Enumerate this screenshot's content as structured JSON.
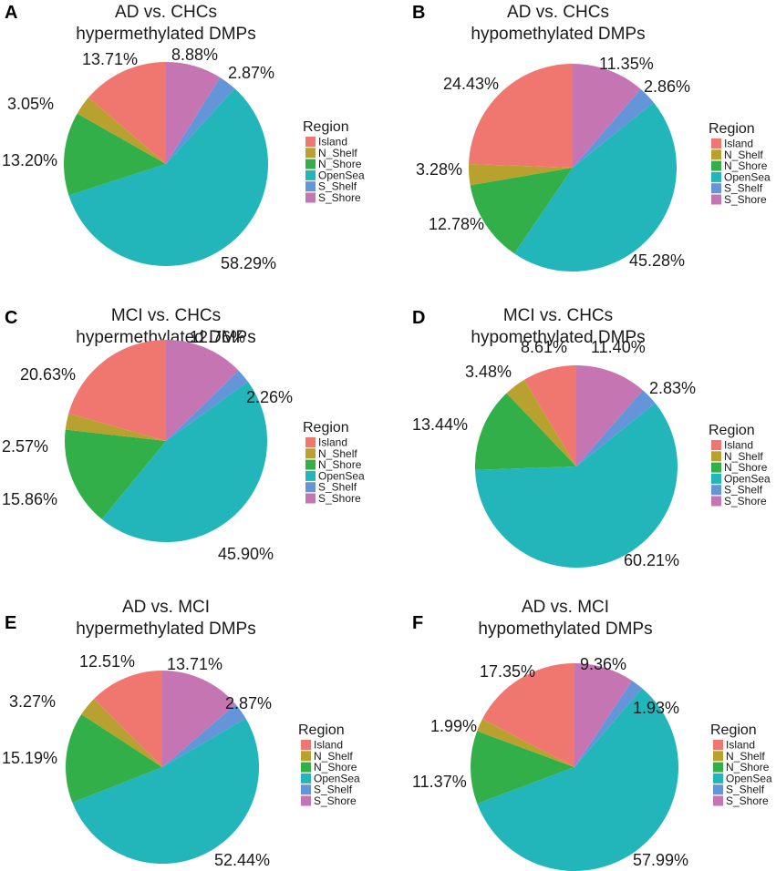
{
  "legend": {
    "title": "Region",
    "items": [
      {
        "name": "Island",
        "color": "#F07770"
      },
      {
        "name": "N_Shelf",
        "color": "#B8A12E"
      },
      {
        "name": "N_Shore",
        "color": "#32AF48"
      },
      {
        "name": "OpenSea",
        "color": "#22B5B9"
      },
      {
        "name": "S_Shelf",
        "color": "#6495D8"
      },
      {
        "name": "S_Shore",
        "color": "#C575B2"
      }
    ]
  },
  "chart_data": [
    {
      "type": "pie",
      "letter": "A",
      "title_lines": [
        "AD vs. CHCs",
        "hypermethylated DMPs"
      ],
      "categories": [
        "S_Shore",
        "S_Shelf",
        "OpenSea",
        "N_Shore",
        "N_Shelf",
        "Island"
      ],
      "values": [
        8.88,
        2.87,
        58.29,
        13.2,
        3.05,
        13.71
      ],
      "labels": [
        "8.88%",
        "2.87%",
        "58.29%",
        "13.20%",
        "3.05%",
        "13.71%"
      ]
    },
    {
      "type": "pie",
      "letter": "B",
      "title_lines": [
        "AD vs. CHCs",
        "hypomethylated DMPs"
      ],
      "categories": [
        "S_Shore",
        "S_Shelf",
        "OpenSea",
        "N_Shore",
        "N_Shelf",
        "Island"
      ],
      "values": [
        11.35,
        2.86,
        45.28,
        12.78,
        3.28,
        24.43
      ],
      "labels": [
        "11.35%",
        "2.86%",
        "45.28%",
        "12.78%",
        "3.28%",
        "24.43%"
      ]
    },
    {
      "type": "pie",
      "letter": "C",
      "title_lines": [
        "MCI vs. CHCs",
        "hypermethylated DMPs"
      ],
      "categories": [
        "S_Shore",
        "S_Shelf",
        "OpenSea",
        "N_Shore",
        "N_Shelf",
        "Island"
      ],
      "values": [
        12.76,
        2.26,
        45.9,
        15.86,
        2.57,
        20.63
      ],
      "labels": [
        "12.76%",
        "2.26%",
        "45.90%",
        "15.86%",
        "2.57%",
        "20.63%"
      ]
    },
    {
      "type": "pie",
      "letter": "D",
      "title_lines": [
        "MCI vs. CHCs",
        "hypomethylated DMPs"
      ],
      "categories": [
        "S_Shore",
        "S_Shelf",
        "OpenSea",
        "N_Shore",
        "N_Shelf",
        "Island"
      ],
      "values": [
        11.4,
        2.83,
        60.21,
        13.44,
        3.48,
        8.61
      ],
      "labels": [
        "11.40%",
        "2.83%",
        "60.21%",
        "13.44%",
        "3.48%",
        "8.61%"
      ]
    },
    {
      "type": "pie",
      "letter": "E",
      "title_lines": [
        "AD vs. MCI",
        "hypermethylated DMPs"
      ],
      "categories": [
        "S_Shore",
        "S_Shelf",
        "OpenSea",
        "N_Shore",
        "N_Shelf",
        "Island"
      ],
      "values": [
        13.71,
        2.87,
        52.44,
        15.19,
        3.27,
        12.51
      ],
      "labels": [
        "13.71%",
        "2.87%",
        "52.44%",
        "15.19%",
        "3.27%",
        "12.51%"
      ]
    },
    {
      "type": "pie",
      "letter": "F",
      "title_lines": [
        "AD vs. MCI",
        "hypomethylated DMPs"
      ],
      "categories": [
        "S_Shore",
        "S_Shelf",
        "OpenSea",
        "N_Shore",
        "N_Shelf",
        "Island"
      ],
      "values": [
        9.36,
        1.93,
        57.99,
        11.37,
        1.99,
        17.35
      ],
      "labels": [
        "9.36%",
        "1.93%",
        "57.99%",
        "11.37%",
        "1.99%",
        "17.35%"
      ]
    }
  ]
}
